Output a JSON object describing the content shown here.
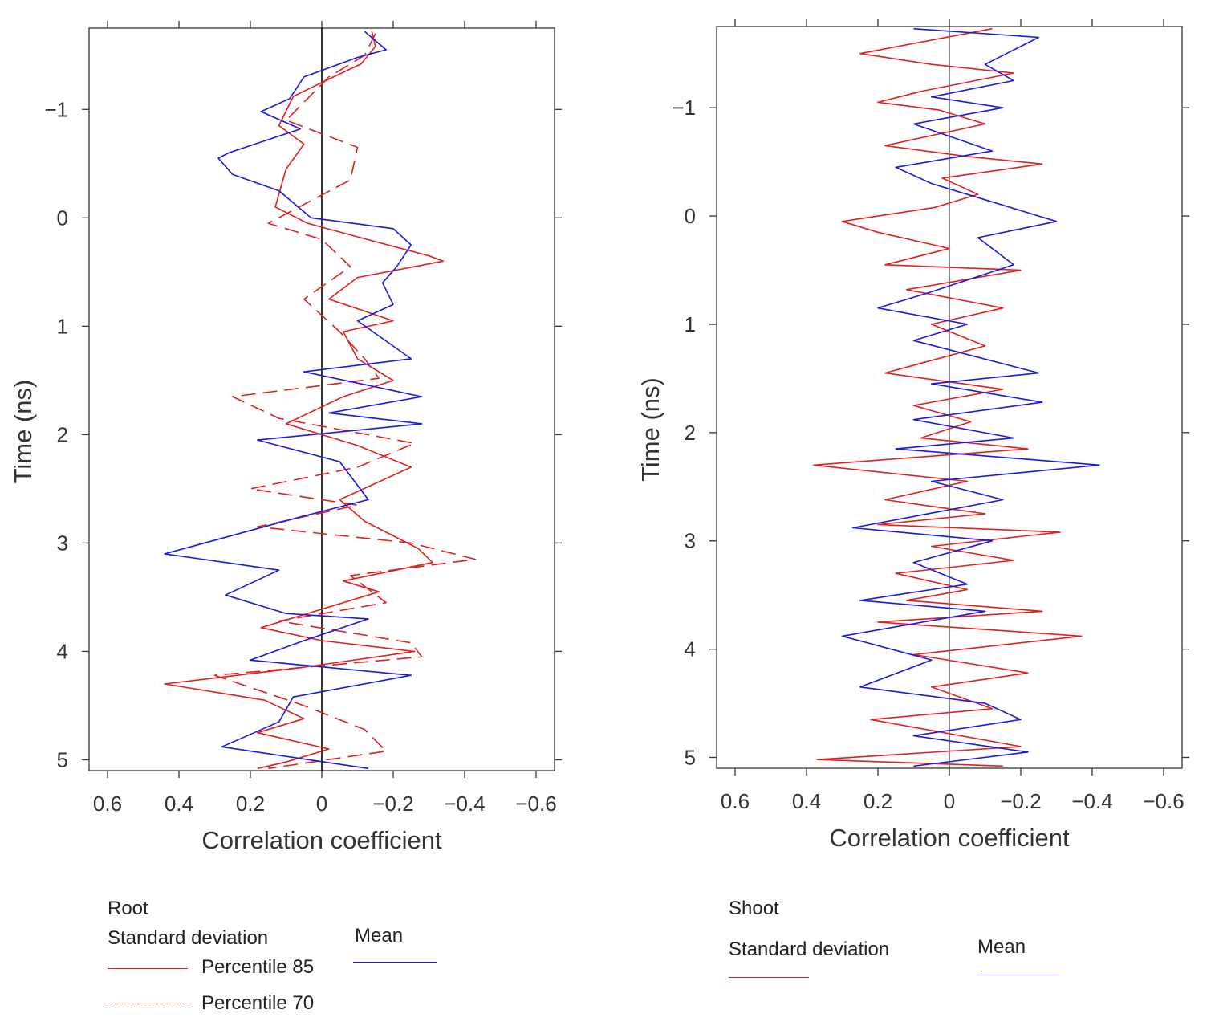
{
  "chart_data": [
    {
      "type": "line",
      "panel": "root",
      "xlabel": "Correlation coefficient",
      "ylabel": "Time (ns)",
      "xlim": [
        0.6,
        -0.6
      ],
      "x_reversed": true,
      "ylim": [
        -1.75,
        5.1
      ],
      "y_reversed": true,
      "xticks": [
        0.6,
        0.4,
        0.2,
        0,
        -0.2,
        -0.4,
        -0.6
      ],
      "xtick_labels": [
        "0.6",
        "0.4",
        "0.2",
        "0",
        "−0.2",
        "−0.4",
        "−0.6"
      ],
      "yticks": [
        -1,
        0,
        1,
        2,
        3,
        4,
        5
      ],
      "ytick_labels": [
        "−1",
        "0",
        "1",
        "2",
        "3",
        "4",
        "5"
      ],
      "reference_line_x": 0,
      "series": [
        {
          "name": "Percentile 85",
          "color": "#e02020",
          "dash": "solid",
          "points": [
            [
              -0.14,
              -1.72
            ],
            [
              -0.15,
              -1.58
            ],
            [
              -0.11,
              -1.42
            ],
            [
              -0.02,
              -1.28
            ],
            [
              0.08,
              -1.12
            ],
            [
              0.12,
              -0.85
            ],
            [
              0.05,
              -0.68
            ],
            [
              0.1,
              -0.45
            ],
            [
              0.12,
              -0.22
            ],
            [
              0.13,
              -0.1
            ],
            [
              0.04,
              0.05
            ],
            [
              -0.15,
              0.22
            ],
            [
              -0.3,
              0.35
            ],
            [
              -0.34,
              0.4
            ],
            [
              -0.1,
              0.55
            ],
            [
              -0.02,
              0.75
            ],
            [
              -0.2,
              0.95
            ],
            [
              -0.06,
              1.05
            ],
            [
              -0.1,
              1.3
            ],
            [
              -0.2,
              1.5
            ],
            [
              -0.06,
              1.65
            ],
            [
              0.1,
              1.9
            ],
            [
              -0.1,
              2.1
            ],
            [
              -0.25,
              2.3
            ],
            [
              -0.05,
              2.6
            ],
            [
              -0.12,
              2.8
            ],
            [
              -0.27,
              3.05
            ],
            [
              -0.31,
              3.18
            ],
            [
              -0.06,
              3.35
            ],
            [
              -0.16,
              3.45
            ],
            [
              0.04,
              3.65
            ],
            [
              0.17,
              3.78
            ],
            [
              0.0,
              3.9
            ],
            [
              -0.26,
              4.0
            ],
            [
              0.06,
              4.15
            ],
            [
              0.44,
              4.3
            ],
            [
              0.16,
              4.45
            ],
            [
              0.05,
              4.62
            ],
            [
              0.18,
              4.75
            ],
            [
              -0.02,
              4.9
            ],
            [
              0.1,
              5.02
            ],
            [
              0.18,
              5.08
            ]
          ]
        },
        {
          "name": "Percentile 70",
          "color": "#e02020",
          "dash": "dashed",
          "points": [
            [
              -0.15,
              -1.7
            ],
            [
              -0.12,
              -1.5
            ],
            [
              -0.02,
              -1.3
            ],
            [
              0.1,
              -0.9
            ],
            [
              -0.1,
              -0.65
            ],
            [
              -0.08,
              -0.35
            ],
            [
              0.15,
              0.05
            ],
            [
              0.0,
              0.2
            ],
            [
              -0.08,
              0.45
            ],
            [
              0.05,
              0.75
            ],
            [
              -0.05,
              1.05
            ],
            [
              -0.12,
              1.3
            ],
            [
              -0.16,
              1.48
            ],
            [
              0.25,
              1.65
            ],
            [
              0.12,
              1.85
            ],
            [
              -0.26,
              2.08
            ],
            [
              -0.1,
              2.3
            ],
            [
              0.2,
              2.5
            ],
            [
              -0.1,
              2.65
            ],
            [
              0.18,
              2.85
            ],
            [
              -0.25,
              3.0
            ],
            [
              -0.43,
              3.15
            ],
            [
              -0.08,
              3.3
            ],
            [
              -0.18,
              3.55
            ],
            [
              0.12,
              3.72
            ],
            [
              -0.25,
              3.92
            ],
            [
              -0.28,
              4.05
            ],
            [
              0.3,
              4.22
            ],
            [
              0.05,
              4.5
            ],
            [
              -0.12,
              4.72
            ],
            [
              -0.18,
              4.92
            ],
            [
              0.15,
              5.08
            ]
          ]
        },
        {
          "name": "Mean",
          "color": "#1a1adc",
          "dash": "solid",
          "points": [
            [
              -0.12,
              -1.72
            ],
            [
              -0.18,
              -1.55
            ],
            [
              -0.1,
              -1.48
            ],
            [
              0.05,
              -1.3
            ],
            [
              0.09,
              -1.1
            ],
            [
              0.17,
              -0.98
            ],
            [
              0.06,
              -0.82
            ],
            [
              0.26,
              -0.6
            ],
            [
              0.29,
              -0.55
            ],
            [
              0.25,
              -0.4
            ],
            [
              0.12,
              -0.25
            ],
            [
              0.03,
              0.0
            ],
            [
              -0.2,
              0.1
            ],
            [
              -0.25,
              0.25
            ],
            [
              -0.21,
              0.45
            ],
            [
              -0.17,
              0.6
            ],
            [
              -0.2,
              0.8
            ],
            [
              -0.1,
              0.95
            ],
            [
              -0.25,
              1.3
            ],
            [
              0.05,
              1.42
            ],
            [
              -0.28,
              1.65
            ],
            [
              -0.02,
              1.8
            ],
            [
              -0.28,
              1.9
            ],
            [
              0.18,
              2.05
            ],
            [
              -0.05,
              2.25
            ],
            [
              -0.13,
              2.6
            ],
            [
              0.05,
              2.75
            ],
            [
              0.44,
              3.1
            ],
            [
              0.12,
              3.25
            ],
            [
              0.27,
              3.48
            ],
            [
              0.1,
              3.65
            ],
            [
              -0.13,
              3.7
            ],
            [
              0.05,
              3.9
            ],
            [
              0.2,
              4.08
            ],
            [
              -0.25,
              4.22
            ],
            [
              0.08,
              4.42
            ],
            [
              0.12,
              4.65
            ],
            [
              0.28,
              4.88
            ],
            [
              -0.13,
              5.08
            ]
          ]
        }
      ]
    },
    {
      "type": "line",
      "panel": "shoot",
      "xlabel": "Correlation coefficient",
      "ylabel": "Time (ns)",
      "xlim": [
        0.6,
        -0.6
      ],
      "x_reversed": true,
      "ylim": [
        -1.75,
        5.1
      ],
      "y_reversed": true,
      "xticks": [
        0.6,
        0.4,
        0.2,
        0,
        -0.2,
        -0.4,
        -0.6
      ],
      "xtick_labels": [
        "0.6",
        "0.4",
        "0.2",
        "0",
        "−0.2",
        "−0.4",
        "−0.6"
      ],
      "yticks": [
        -1,
        0,
        1,
        2,
        3,
        4,
        5
      ],
      "ytick_labels": [
        "−1",
        "0",
        "1",
        "2",
        "3",
        "4",
        "5"
      ],
      "reference_line_x": 0,
      "series": [
        {
          "name": "Standard deviation",
          "color": "#e02020",
          "dash": "solid",
          "points": [
            [
              -0.12,
              -1.73
            ],
            [
              0.25,
              -1.5
            ],
            [
              0.05,
              -1.4
            ],
            [
              -0.18,
              -1.32
            ],
            [
              0.08,
              -1.15
            ],
            [
              0.2,
              -1.05
            ],
            [
              0.03,
              -0.98
            ],
            [
              -0.1,
              -0.85
            ],
            [
              0.18,
              -0.65
            ],
            [
              -0.05,
              -0.55
            ],
            [
              -0.26,
              -0.48
            ],
            [
              0.02,
              -0.35
            ],
            [
              -0.08,
              -0.2
            ],
            [
              0.04,
              -0.08
            ],
            [
              0.3,
              0.05
            ],
            [
              0.2,
              0.15
            ],
            [
              0.0,
              0.3
            ],
            [
              0.18,
              0.45
            ],
            [
              -0.2,
              0.5
            ],
            [
              0.12,
              0.68
            ],
            [
              -0.15,
              0.85
            ],
            [
              0.05,
              1.0
            ],
            [
              -0.1,
              1.2
            ],
            [
              0.18,
              1.45
            ],
            [
              -0.15,
              1.6
            ],
            [
              0.1,
              1.75
            ],
            [
              -0.06,
              1.9
            ],
            [
              0.08,
              2.05
            ],
            [
              -0.22,
              2.15
            ],
            [
              0.38,
              2.3
            ],
            [
              -0.05,
              2.45
            ],
            [
              0.18,
              2.62
            ],
            [
              -0.1,
              2.75
            ],
            [
              0.2,
              2.85
            ],
            [
              -0.31,
              2.92
            ],
            [
              0.05,
              3.05
            ],
            [
              -0.18,
              3.18
            ],
            [
              0.15,
              3.3
            ],
            [
              -0.05,
              3.45
            ],
            [
              0.12,
              3.55
            ],
            [
              -0.26,
              3.65
            ],
            [
              0.2,
              3.75
            ],
            [
              -0.37,
              3.88
            ],
            [
              0.1,
              4.05
            ],
            [
              -0.22,
              4.22
            ],
            [
              0.05,
              4.35
            ],
            [
              -0.12,
              4.55
            ],
            [
              0.22,
              4.65
            ],
            [
              -0.2,
              4.9
            ],
            [
              0.37,
              5.02
            ],
            [
              -0.15,
              5.08
            ]
          ]
        },
        {
          "name": "Mean",
          "color": "#1a1adc",
          "dash": "solid",
          "points": [
            [
              0.1,
              -1.73
            ],
            [
              -0.25,
              -1.65
            ],
            [
              -0.1,
              -1.4
            ],
            [
              -0.18,
              -1.25
            ],
            [
              0.05,
              -1.1
            ],
            [
              -0.15,
              -1.0
            ],
            [
              0.1,
              -0.85
            ],
            [
              -0.12,
              -0.6
            ],
            [
              0.15,
              -0.45
            ],
            [
              0.05,
              -0.3
            ],
            [
              -0.1,
              -0.15
            ],
            [
              -0.25,
              0.0
            ],
            [
              -0.3,
              0.05
            ],
            [
              -0.08,
              0.2
            ],
            [
              -0.18,
              0.45
            ],
            [
              0.05,
              0.7
            ],
            [
              0.2,
              0.85
            ],
            [
              -0.05,
              1.0
            ],
            [
              0.1,
              1.15
            ],
            [
              -0.25,
              1.45
            ],
            [
              0.05,
              1.55
            ],
            [
              -0.26,
              1.72
            ],
            [
              0.1,
              1.88
            ],
            [
              -0.18,
              2.05
            ],
            [
              0.15,
              2.15
            ],
            [
              -0.42,
              2.3
            ],
            [
              0.05,
              2.45
            ],
            [
              -0.15,
              2.62
            ],
            [
              0.27,
              2.88
            ],
            [
              -0.12,
              3.0
            ],
            [
              0.1,
              3.2
            ],
            [
              -0.05,
              3.4
            ],
            [
              0.25,
              3.55
            ],
            [
              -0.1,
              3.65
            ],
            [
              0.3,
              3.88
            ],
            [
              0.05,
              4.1
            ],
            [
              0.25,
              4.35
            ],
            [
              -0.1,
              4.5
            ],
            [
              -0.2,
              4.65
            ],
            [
              0.1,
              4.8
            ],
            [
              -0.22,
              4.95
            ],
            [
              0.1,
              5.08
            ]
          ]
        }
      ]
    }
  ],
  "legend": {
    "root": {
      "group_title": "Root",
      "sd_label": "Standard deviation",
      "p85_label": "Percentile 85",
      "p70_label": "Percentile 70",
      "mean_label": "Mean"
    },
    "shoot": {
      "group_title": "Shoot",
      "sd_label": "Standard deviation",
      "mean_label": "Mean"
    }
  },
  "colors": {
    "sd": "#e02020",
    "mean": "#1a1adc",
    "axis": "#333333"
  }
}
